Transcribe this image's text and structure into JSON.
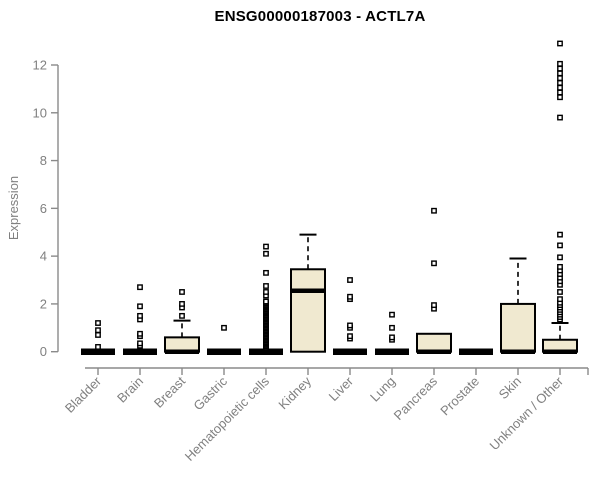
{
  "chart_data": {
    "type": "boxplot",
    "title": "ENSG00000187003 - ACTL7A",
    "ylabel": "Expression",
    "xlabel": "",
    "ylim": [
      0,
      12
    ],
    "yticks": [
      0,
      2,
      4,
      6,
      8,
      10,
      12
    ],
    "grid": false,
    "legend": "none",
    "colors": {
      "box_fill": "#f0e9d0",
      "box_stroke": "#000000",
      "axis_color": "#8a8a8a",
      "text_color": "#808080",
      "title_color": "#000000",
      "background": "#ffffff"
    },
    "categories": [
      "Bladder",
      "Brain",
      "Breast",
      "Gastric",
      "Hematopoietic cells",
      "Kidney",
      "Liver",
      "Lung",
      "Pancreas",
      "Prostate",
      "Skin",
      "Unknown / Other"
    ],
    "series": [
      {
        "category": "Bladder",
        "q1": 0,
        "median": 0,
        "q3": 0,
        "whisker_low": 0,
        "whisker_high": 0,
        "outliers": [
          0.2,
          0.7,
          0.9,
          1.2
        ]
      },
      {
        "category": "Brain",
        "q1": 0,
        "median": 0,
        "q3": 0,
        "whisker_low": 0,
        "whisker_high": 0,
        "outliers": [
          0.25,
          0.35,
          0.65,
          0.75,
          1.35,
          1.5,
          1.9,
          2.7
        ]
      },
      {
        "category": "Breast",
        "q1": 0,
        "median": 0,
        "q3": 0.6,
        "whisker_low": 0,
        "whisker_high": 1.3,
        "outliers": [
          1.5,
          1.85,
          2.0,
          2.5
        ]
      },
      {
        "category": "Gastric",
        "q1": 0,
        "median": 0,
        "q3": 0,
        "whisker_low": 0,
        "whisker_high": 0,
        "outliers": [
          1.0
        ]
      },
      {
        "category": "Hematopoietic cells",
        "q1": 0,
        "median": 0,
        "q3": 0,
        "whisker_low": 0,
        "whisker_high": 0,
        "outliers": [
          0.05,
          0.1,
          0.15,
          0.2,
          0.25,
          0.3,
          0.35,
          0.4,
          0.45,
          0.5,
          0.55,
          0.6,
          0.65,
          0.7,
          0.75,
          0.8,
          0.85,
          0.9,
          0.95,
          1.0,
          1.05,
          1.1,
          1.15,
          1.2,
          1.25,
          1.3,
          1.35,
          1.4,
          1.45,
          1.5,
          1.55,
          1.6,
          1.65,
          1.7,
          1.75,
          1.8,
          1.85,
          1.9,
          1.95,
          2.0,
          2.05,
          2.1,
          2.35,
          2.5,
          2.75,
          3.3,
          4.1,
          4.4
        ]
      },
      {
        "category": "Kidney",
        "q1": 0,
        "median": 2.55,
        "q3": 3.45,
        "whisker_low": 0,
        "whisker_high": 4.9,
        "outliers": []
      },
      {
        "category": "Liver",
        "q1": 0,
        "median": 0,
        "q3": 0,
        "whisker_low": 0,
        "whisker_high": 0,
        "outliers": [
          0.55,
          0.65,
          1.0,
          1.1,
          2.2,
          2.3,
          3.0
        ]
      },
      {
        "category": "Lung",
        "q1": 0,
        "median": 0,
        "q3": 0,
        "whisker_low": 0,
        "whisker_high": 0,
        "outliers": [
          0.5,
          0.6,
          1.0,
          1.55
        ]
      },
      {
        "category": "Pancreas",
        "q1": 0,
        "median": 0,
        "q3": 0.75,
        "whisker_low": 0,
        "whisker_high": 0.75,
        "outliers": [
          1.8,
          1.95,
          3.7,
          5.9
        ]
      },
      {
        "category": "Prostate",
        "q1": 0,
        "median": 0,
        "q3": 0,
        "whisker_low": 0,
        "whisker_high": 0,
        "outliers": []
      },
      {
        "category": "Skin",
        "q1": 0,
        "median": 0,
        "q3": 2.0,
        "whisker_low": 0,
        "whisker_high": 3.9,
        "outliers": []
      },
      {
        "category": "Unknown / Other",
        "q1": 0,
        "median": 0,
        "q3": 0.5,
        "whisker_low": 0,
        "whisker_high": 1.2,
        "outliers": [
          1.35,
          1.45,
          1.55,
          1.65,
          1.75,
          1.85,
          1.95,
          2.05,
          2.2,
          2.5,
          2.8,
          2.95,
          3.1,
          3.25,
          3.4,
          3.55,
          3.95,
          4.45,
          4.9,
          9.8,
          10.65,
          10.85,
          11.05,
          11.25,
          11.45,
          11.65,
          11.85,
          12.05,
          12.9
        ]
      }
    ]
  }
}
